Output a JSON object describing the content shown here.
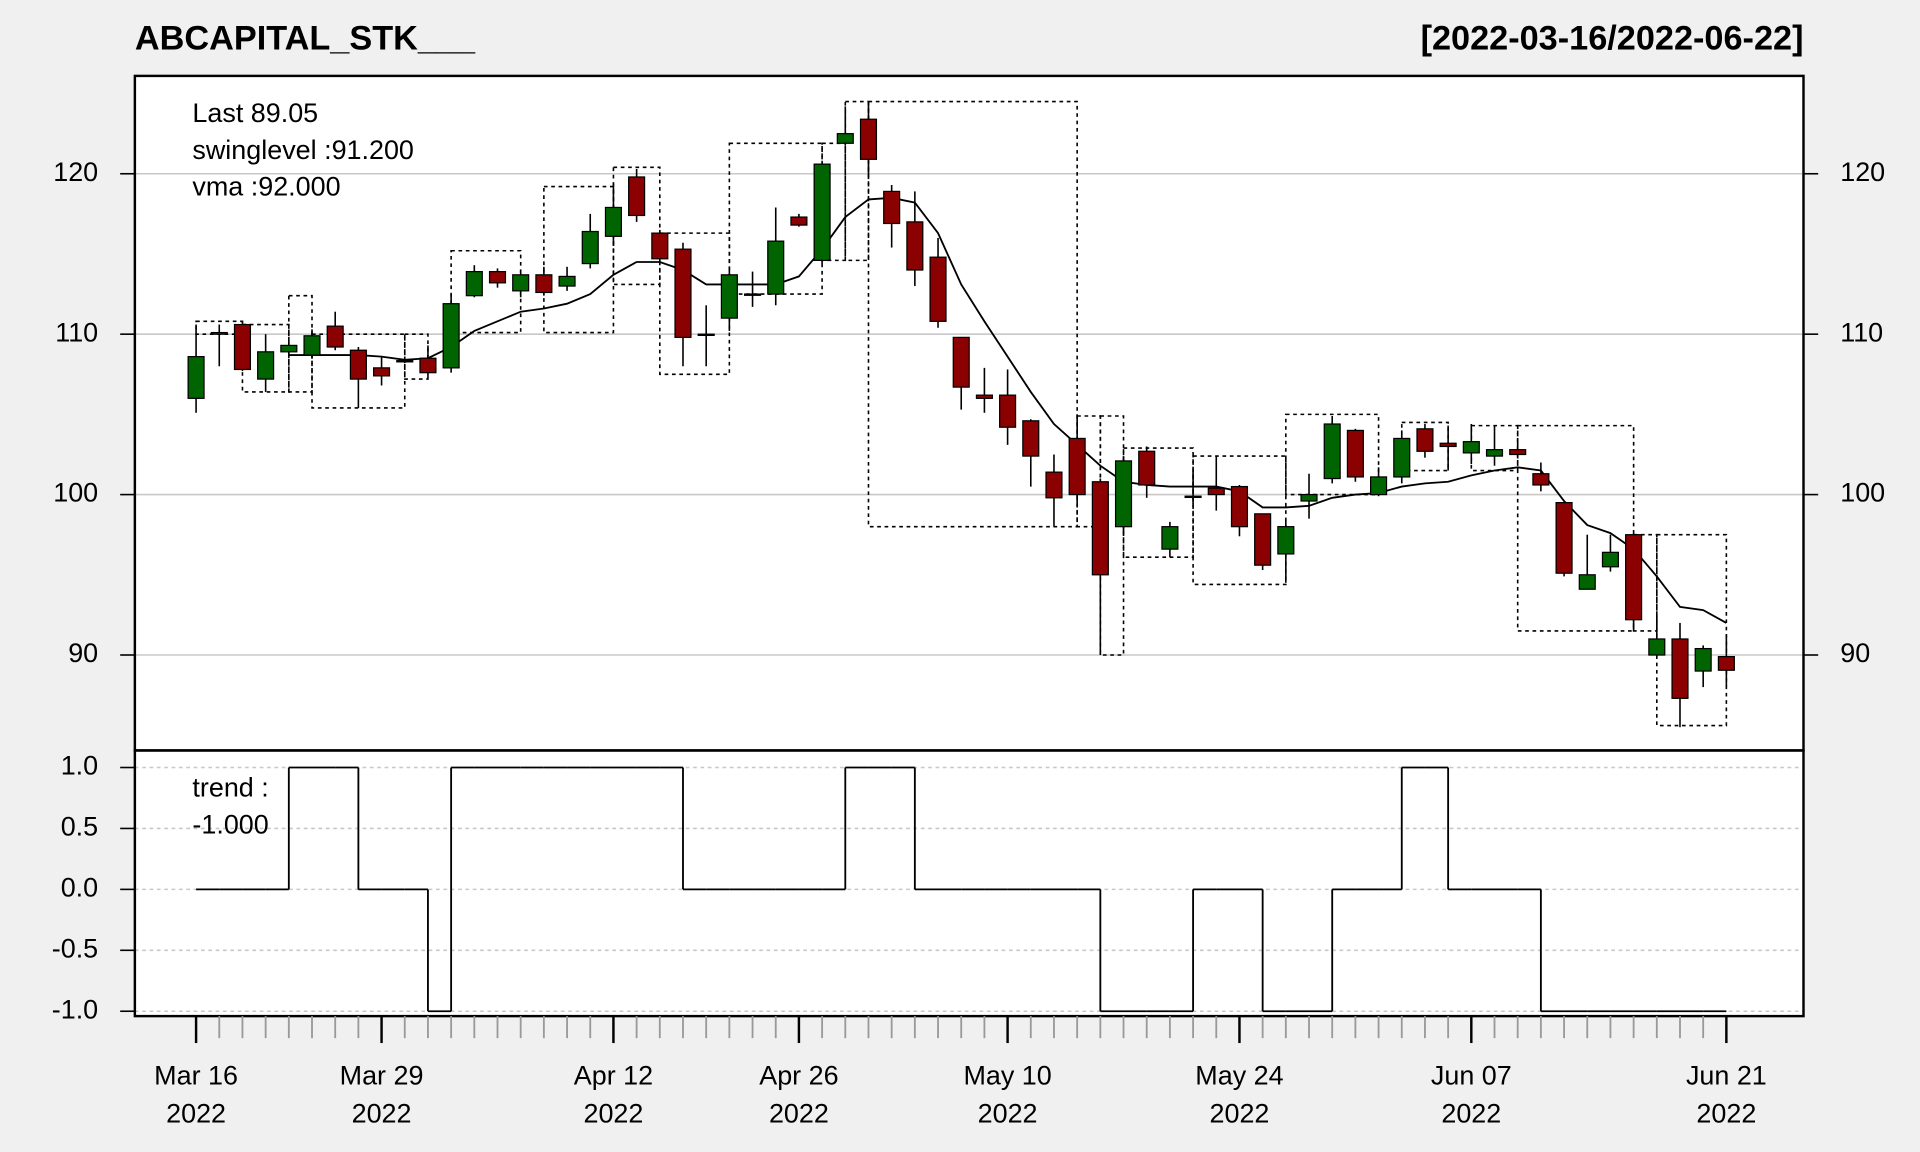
{
  "chart_data": [
    {
      "type": "candlestick",
      "title": "ABCAPITAL_STK___",
      "subtitle": "[2022-03-16/2022-06-22]",
      "last_label": "Last 89.05",
      "categories": [
        [
          "Mar 16",
          "2022"
        ],
        null,
        null,
        null,
        null,
        null,
        null,
        null,
        [
          "Mar 29",
          "2022"
        ],
        null,
        null,
        null,
        null,
        null,
        null,
        null,
        null,
        null,
        [
          "Apr 12",
          "2022"
        ],
        null,
        null,
        null,
        null,
        null,
        null,
        null,
        [
          "Apr 26",
          "2022"
        ],
        null,
        null,
        null,
        null,
        null,
        null,
        null,
        null,
        [
          "May 10",
          "2022"
        ],
        null,
        null,
        null,
        null,
        null,
        null,
        null,
        null,
        null,
        [
          "May 24",
          "2022"
        ],
        null,
        null,
        null,
        null,
        null,
        null,
        null,
        null,
        null,
        [
          "Jun 07",
          "2022"
        ],
        null,
        null,
        null,
        null,
        null,
        null,
        null,
        null,
        null,
        null,
        [
          "Jun 21",
          "2022"
        ]
      ],
      "open": [
        106.0,
        110.0,
        110.6,
        107.2,
        108.9,
        108.7,
        110.5,
        109.0,
        107.9,
        108.35,
        108.5,
        107.9,
        112.4,
        113.9,
        112.7,
        113.7,
        113.0,
        114.4,
        116.1,
        119.8,
        116.3,
        115.3,
        110.0,
        111.0,
        112.45,
        112.5,
        117.3,
        114.6,
        121.9,
        123.4,
        118.9,
        117.0,
        114.8,
        109.8,
        106.2,
        106.2,
        104.6,
        101.4,
        103.5,
        100.8,
        98.0,
        102.7,
        96.6,
        99.85,
        100.4,
        100.5,
        98.8,
        96.3,
        99.6,
        101.0,
        104.0,
        100.0,
        101.1,
        104.1,
        103.2,
        102.6,
        102.4,
        102.8,
        101.3,
        99.5,
        94.1,
        95.5,
        97.5,
        90.0,
        91.0,
        89.0,
        89.9
      ],
      "high": [
        110.6,
        110.6,
        110.8,
        110.0,
        109.5,
        110.3,
        111.4,
        109.2,
        108.6,
        108.5,
        109.3,
        112.5,
        114.3,
        114.1,
        114.0,
        114.2,
        114.2,
        117.5,
        119.4,
        120.3,
        116.5,
        115.7,
        111.8,
        114.0,
        113.9,
        117.9,
        117.5,
        120.6,
        124.2,
        124.4,
        119.3,
        118.9,
        116.0,
        109.8,
        107.9,
        107.8,
        104.7,
        102.5,
        105.0,
        101.0,
        102.4,
        103.0,
        98.3,
        101.5,
        102.4,
        100.6,
        98.8,
        98.4,
        101.3,
        104.9,
        104.1,
        101.7,
        104.0,
        104.4,
        104.3,
        104.4,
        104.3,
        103.5,
        102.0,
        99.5,
        97.5,
        97.5,
        97.6,
        92.5,
        92.0,
        90.6,
        91.3
      ],
      "low": [
        105.1,
        108.0,
        107.7,
        106.4,
        108.8,
        108.5,
        109.0,
        105.4,
        106.8,
        108.2,
        107.3,
        107.6,
        112.3,
        112.9,
        112.3,
        112.4,
        112.7,
        114.1,
        115.5,
        117.0,
        114.5,
        108.0,
        108.0,
        110.2,
        111.7,
        111.8,
        116.7,
        114.4,
        121.9,
        119.9,
        115.4,
        113.0,
        110.4,
        105.3,
        105.1,
        103.1,
        100.5,
        98.0,
        99.5,
        90.0,
        97.5,
        99.8,
        96.1,
        99.4,
        99.0,
        97.4,
        95.3,
        94.5,
        98.5,
        100.7,
        100.8,
        99.9,
        100.7,
        102.3,
        101.5,
        101.9,
        101.8,
        102.3,
        100.2,
        94.9,
        94.1,
        95.2,
        91.5,
        89.9,
        85.5,
        88.0,
        88.0
      ],
      "close": [
        108.6,
        110.1,
        107.8,
        108.9,
        109.3,
        109.9,
        109.2,
        107.2,
        107.4,
        108.3,
        107.6,
        111.9,
        113.9,
        113.2,
        113.7,
        112.6,
        113.6,
        116.4,
        117.9,
        117.4,
        114.7,
        109.8,
        109.95,
        113.7,
        112.5,
        115.8,
        116.8,
        120.6,
        122.5,
        120.9,
        116.9,
        114.0,
        110.8,
        106.7,
        106.0,
        104.2,
        102.4,
        99.8,
        100.0,
        95.0,
        102.1,
        100.6,
        98.0,
        99.9,
        100.0,
        98.0,
        95.6,
        98.0,
        100.0,
        104.4,
        101.1,
        101.1,
        103.5,
        102.7,
        103.0,
        103.3,
        102.8,
        102.5,
        100.6,
        95.1,
        95.0,
        96.4,
        92.2,
        91.0,
        87.3,
        90.4,
        89.05
      ],
      "up_color": "#006400",
      "down_color": "#8b0000",
      "last_color": "#8b0000",
      "swing": {
        "label": "swinglevel :91.200",
        "boxes": [
          {
            "from": 0,
            "to": 2,
            "top": 110.8,
            "bottom": 110.0
          },
          {
            "from": 2,
            "to": 4,
            "top": 110.6,
            "bottom": 106.4
          },
          {
            "from": 4,
            "to": 5,
            "top": 112.4,
            "bottom": 106.4
          },
          {
            "from": 5,
            "to": 9,
            "top": 110.0,
            "bottom": 105.4
          },
          {
            "from": 9,
            "to": 10,
            "top": 110.0,
            "bottom": 107.2
          },
          {
            "from": 11,
            "to": 14,
            "top": 115.2,
            "bottom": 110.1
          },
          {
            "from": 15,
            "to": 18,
            "top": 119.2,
            "bottom": 110.1
          },
          {
            "from": 18,
            "to": 20,
            "top": 120.4,
            "bottom": 113.1
          },
          {
            "from": 20,
            "to": 23,
            "top": 116.3,
            "bottom": 107.5
          },
          {
            "from": 23,
            "to": 27,
            "top": 121.9,
            "bottom": 112.5
          },
          {
            "from": 27,
            "to": 28,
            "top": 121.9,
            "bottom": 114.6
          },
          {
            "from": 28,
            "to": 29,
            "top": 124.5,
            "bottom": 114.6
          },
          {
            "from": 29,
            "to": 38,
            "top": 124.5,
            "bottom": 98.0
          },
          {
            "from": 38,
            "to": 39,
            "top": 104.9,
            "bottom": 98.0
          },
          {
            "from": 39,
            "to": 40,
            "top": 104.9,
            "bottom": 90.0
          },
          {
            "from": 40,
            "to": 43,
            "top": 102.9,
            "bottom": 96.1
          },
          {
            "from": 43,
            "to": 47,
            "top": 102.4,
            "bottom": 94.4
          },
          {
            "from": 47,
            "to": 51,
            "top": 105.0,
            "bottom": 100.0
          },
          {
            "from": 52,
            "to": 54,
            "top": 104.5,
            "bottom": 101.5
          },
          {
            "from": 55,
            "to": 57,
            "top": 104.3,
            "bottom": 101.5
          },
          {
            "from": 57,
            "to": 62,
            "top": 104.3,
            "bottom": 91.5
          },
          {
            "from": 62,
            "to": 63,
            "top": 97.5,
            "bottom": 91.5
          },
          {
            "from": 63,
            "to": 66,
            "top": 97.5,
            "bottom": 85.6
          }
        ]
      },
      "overlay": {
        "label": "vma :92.000",
        "color": "#000000",
        "values": [
          null,
          null,
          null,
          null,
          108.7,
          108.7,
          108.7,
          108.7,
          108.6,
          108.4,
          108.5,
          109.2,
          110.2,
          110.8,
          111.4,
          111.6,
          111.9,
          112.5,
          113.7,
          114.5,
          114.5,
          114.0,
          113.1,
          113.1,
          113.1,
          113.1,
          113.6,
          115.3,
          117.3,
          118.4,
          118.5,
          118.2,
          116.3,
          113.1,
          110.8,
          108.6,
          106.4,
          104.4,
          103.1,
          101.8,
          100.8,
          100.6,
          100.5,
          100.5,
          100.5,
          100.2,
          99.2,
          99.2,
          99.3,
          99.8,
          100.0,
          100.1,
          100.5,
          100.7,
          100.8,
          101.2,
          101.5,
          101.7,
          101.5,
          99.6,
          98.1,
          97.6,
          96.6,
          94.9,
          93.0,
          92.8,
          92.0
        ]
      },
      "ylim": [
        84.05,
        126.1
      ],
      "yticks": [
        90,
        100,
        110,
        120
      ],
      "grid": true
    },
    {
      "type": "step",
      "label": "trend :",
      "value_label": "-1.000",
      "color": "#000000",
      "values": [
        0,
        0,
        0,
        0,
        1,
        1,
        1,
        0,
        0,
        0,
        -1,
        1,
        1,
        1,
        1,
        1,
        1,
        1,
        1,
        1,
        1,
        0,
        0,
        0,
        0,
        0,
        0,
        0,
        1,
        1,
        1,
        0,
        0,
        0,
        0,
        0,
        0,
        0,
        0,
        -1,
        -1,
        -1,
        -1,
        0,
        0,
        0,
        -1,
        -1,
        -1,
        0,
        0,
        0,
        1,
        1,
        0,
        0,
        0,
        0,
        -1,
        -1,
        -1,
        -1,
        -1,
        -1,
        -1,
        -1,
        -1
      ],
      "ylim": [
        -1.04,
        1.14
      ],
      "yticks": [
        {
          "value": -1,
          "label": "-1.0"
        },
        {
          "value": -0.5,
          "label": "-0.5"
        },
        {
          "value": 0,
          "label": "0.0"
        },
        {
          "value": 0.5,
          "label": "0.5"
        },
        {
          "value": 1,
          "label": "1.0"
        }
      ],
      "grid": "dashed"
    }
  ]
}
